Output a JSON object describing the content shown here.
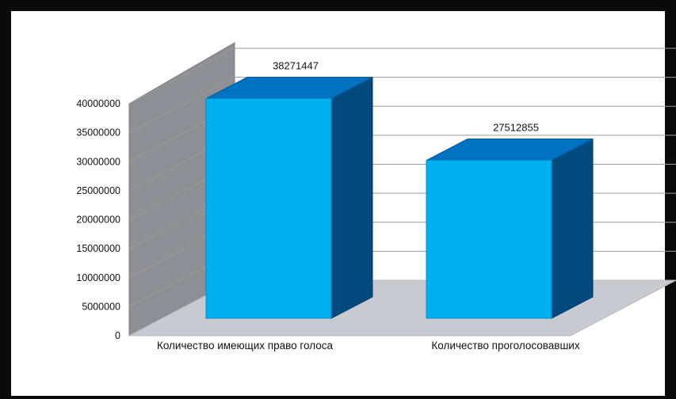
{
  "chart_data": {
    "type": "bar",
    "style": "3d",
    "categories": [
      "Количество имеющих право голоса",
      "Количество проголосовавших"
    ],
    "values": [
      38271447,
      27512855
    ],
    "data_labels": [
      "38271447",
      "27512855"
    ],
    "y_ticks": [
      "0",
      "5000000",
      "10000000",
      "15000000",
      "20000000",
      "25000000",
      "30000000",
      "35000000",
      "40000000"
    ],
    "ylim": [
      0,
      40000000
    ],
    "grid": true,
    "legend": "none",
    "title": "",
    "xlabel": "",
    "ylabel": "",
    "colors": {
      "bar_front": "#01b0f1",
      "bar_top": "#0171c1",
      "bar_side": "#02497e",
      "wall": "#8c8f95",
      "floor": "#c7cbd1",
      "grid": "#9a9a9a"
    }
  }
}
